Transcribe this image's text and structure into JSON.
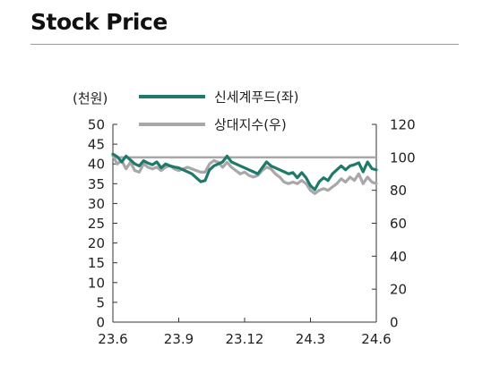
{
  "header": {
    "title": "Stock Price"
  },
  "chart_data": {
    "type": "line",
    "title": "",
    "left_axis_unit_label": "(천원)",
    "y_left": {
      "range": [
        0,
        50
      ],
      "ticks": [
        0,
        5,
        10,
        15,
        20,
        25,
        30,
        35,
        40,
        45,
        50
      ],
      "tick_labels": [
        "0",
        "5",
        "10",
        "15",
        "20",
        "25",
        "30",
        "35",
        "40",
        "45",
        "50"
      ]
    },
    "y_right": {
      "range": [
        0,
        120
      ],
      "ticks": [
        0,
        20,
        40,
        60,
        80,
        100,
        120
      ],
      "tick_labels": [
        "0",
        "20",
        "40",
        "60",
        "80",
        "100",
        "120"
      ]
    },
    "x": {
      "range": [
        0,
        12
      ],
      "ticks": [
        0,
        3,
        6,
        9,
        12
      ],
      "tick_labels": [
        "23.6",
        "23.9",
        "23.12",
        "24.3",
        "24.6"
      ]
    },
    "grid": false,
    "legend_position": "top",
    "reference_line": {
      "axis": "right",
      "value": 100,
      "color": "#a8a8a8"
    },
    "series": [
      {
        "name": "신세계푸드(좌)",
        "axis": "left",
        "color": "#1f7a6b",
        "points": [
          [
            0.0,
            42.5
          ],
          [
            0.2,
            41.8
          ],
          [
            0.4,
            40.5
          ],
          [
            0.6,
            42.0
          ],
          [
            0.8,
            41.0
          ],
          [
            1.0,
            40.0
          ],
          [
            1.2,
            39.5
          ],
          [
            1.4,
            40.8
          ],
          [
            1.6,
            40.2
          ],
          [
            1.8,
            39.8
          ],
          [
            2.0,
            40.5
          ],
          [
            2.2,
            39.0
          ],
          [
            2.4,
            40.0
          ],
          [
            2.6,
            39.5
          ],
          [
            2.8,
            39.2
          ],
          [
            3.0,
            39.0
          ],
          [
            3.2,
            38.5
          ],
          [
            3.4,
            38.0
          ],
          [
            3.6,
            37.5
          ],
          [
            3.8,
            36.5
          ],
          [
            4.0,
            35.5
          ],
          [
            4.2,
            35.8
          ],
          [
            4.4,
            38.5
          ],
          [
            4.6,
            39.5
          ],
          [
            4.8,
            40.0
          ],
          [
            5.0,
            40.5
          ],
          [
            5.2,
            42.0
          ],
          [
            5.4,
            40.5
          ],
          [
            5.6,
            40.0
          ],
          [
            5.8,
            39.5
          ],
          [
            6.0,
            39.0
          ],
          [
            6.2,
            38.5
          ],
          [
            6.4,
            38.0
          ],
          [
            6.6,
            37.5
          ],
          [
            6.8,
            39.0
          ],
          [
            7.0,
            40.5
          ],
          [
            7.2,
            39.5
          ],
          [
            7.4,
            39.0
          ],
          [
            7.6,
            38.5
          ],
          [
            7.8,
            38.0
          ],
          [
            8.0,
            37.5
          ],
          [
            8.2,
            37.8
          ],
          [
            8.4,
            36.5
          ],
          [
            8.6,
            37.8
          ],
          [
            8.8,
            36.5
          ],
          [
            9.0,
            34.5
          ],
          [
            9.2,
            33.5
          ],
          [
            9.4,
            35.5
          ],
          [
            9.6,
            36.5
          ],
          [
            9.8,
            35.8
          ],
          [
            10.0,
            37.5
          ],
          [
            10.2,
            38.5
          ],
          [
            10.4,
            39.5
          ],
          [
            10.6,
            38.5
          ],
          [
            10.8,
            39.5
          ],
          [
            11.0,
            39.8
          ],
          [
            11.2,
            40.3
          ],
          [
            11.4,
            38.0
          ],
          [
            11.6,
            40.5
          ],
          [
            11.8,
            38.8
          ],
          [
            12.0,
            38.5
          ]
        ]
      },
      {
        "name": "상대지수(우)",
        "axis": "right",
        "color": "#a8a8a8",
        "points": [
          [
            0.0,
            101
          ],
          [
            0.2,
            96
          ],
          [
            0.4,
            98
          ],
          [
            0.6,
            93
          ],
          [
            0.8,
            97
          ],
          [
            1.0,
            92
          ],
          [
            1.2,
            91
          ],
          [
            1.4,
            96
          ],
          [
            1.6,
            94
          ],
          [
            1.8,
            93
          ],
          [
            2.0,
            94
          ],
          [
            2.2,
            92
          ],
          [
            2.4,
            94
          ],
          [
            2.6,
            95
          ],
          [
            2.8,
            93
          ],
          [
            3.0,
            92
          ],
          [
            3.2,
            93
          ],
          [
            3.4,
            94
          ],
          [
            3.6,
            93
          ],
          [
            3.8,
            92
          ],
          [
            4.0,
            91
          ],
          [
            4.2,
            91
          ],
          [
            4.4,
            96
          ],
          [
            4.6,
            98
          ],
          [
            4.8,
            97
          ],
          [
            5.0,
            94
          ],
          [
            5.2,
            97
          ],
          [
            5.4,
            94
          ],
          [
            5.6,
            92
          ],
          [
            5.8,
            90
          ],
          [
            6.0,
            91
          ],
          [
            6.2,
            89
          ],
          [
            6.4,
            88
          ],
          [
            6.6,
            89
          ],
          [
            6.8,
            92
          ],
          [
            7.0,
            94
          ],
          [
            7.2,
            93
          ],
          [
            7.4,
            90
          ],
          [
            7.6,
            88
          ],
          [
            7.8,
            85
          ],
          [
            8.0,
            84
          ],
          [
            8.2,
            85
          ],
          [
            8.4,
            84
          ],
          [
            8.6,
            86
          ],
          [
            8.8,
            84
          ],
          [
            9.0,
            80
          ],
          [
            9.2,
            78
          ],
          [
            9.4,
            80
          ],
          [
            9.6,
            81
          ],
          [
            9.8,
            80
          ],
          [
            10.0,
            82
          ],
          [
            10.2,
            84
          ],
          [
            10.4,
            87
          ],
          [
            10.6,
            85
          ],
          [
            10.8,
            88
          ],
          [
            11.0,
            86
          ],
          [
            11.2,
            90
          ],
          [
            11.4,
            84
          ],
          [
            11.6,
            88
          ],
          [
            11.8,
            85
          ],
          [
            12.0,
            84
          ]
        ]
      }
    ]
  }
}
